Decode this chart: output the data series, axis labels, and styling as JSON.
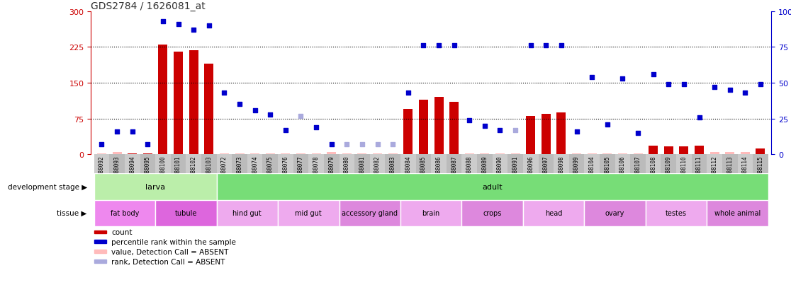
{
  "title": "GDS2784 / 1626081_at",
  "samples": [
    "GSM188092",
    "GSM188093",
    "GSM188094",
    "GSM188095",
    "GSM188100",
    "GSM188101",
    "GSM188102",
    "GSM188103",
    "GSM188072",
    "GSM188073",
    "GSM188074",
    "GSM188075",
    "GSM188076",
    "GSM188077",
    "GSM188078",
    "GSM188079",
    "GSM188080",
    "GSM188081",
    "GSM188082",
    "GSM188083",
    "GSM188084",
    "GSM188085",
    "GSM188086",
    "GSM188087",
    "GSM188088",
    "GSM188089",
    "GSM188090",
    "GSM188091",
    "GSM188096",
    "GSM188097",
    "GSM188098",
    "GSM188099",
    "GSM188104",
    "GSM188105",
    "GSM188106",
    "GSM188107",
    "GSM188108",
    "GSM188109",
    "GSM188110",
    "GSM188111",
    "GSM188112",
    "GSM188113",
    "GSM188114",
    "GSM188115"
  ],
  "count_values": [
    2,
    5,
    2,
    2,
    230,
    215,
    218,
    190,
    2,
    2,
    2,
    2,
    2,
    2,
    2,
    5,
    2,
    2,
    2,
    2,
    95,
    115,
    120,
    110,
    2,
    2,
    2,
    2,
    80,
    85,
    88,
    2,
    2,
    2,
    2,
    2,
    18,
    17,
    17,
    18,
    5,
    5,
    5,
    12
  ],
  "absent_count": [
    true,
    true,
    false,
    false,
    false,
    false,
    false,
    false,
    true,
    true,
    true,
    true,
    true,
    true,
    true,
    true,
    true,
    true,
    true,
    true,
    false,
    false,
    false,
    false,
    true,
    true,
    true,
    true,
    false,
    false,
    false,
    true,
    true,
    true,
    true,
    true,
    false,
    false,
    false,
    false,
    true,
    true,
    true,
    false
  ],
  "rank_pct": [
    7,
    16,
    16,
    7,
    93,
    91,
    87,
    90,
    43,
    35,
    31,
    28,
    17,
    27,
    19,
    7,
    7,
    7,
    7,
    7,
    43,
    76,
    76,
    76,
    24,
    20,
    17,
    17,
    76,
    76,
    76,
    16,
    54,
    21,
    53,
    15,
    56,
    49,
    49,
    26,
    47,
    45,
    43,
    49
  ],
  "absent_rank": [
    false,
    false,
    false,
    false,
    false,
    false,
    false,
    false,
    false,
    false,
    false,
    false,
    false,
    true,
    false,
    false,
    true,
    true,
    true,
    true,
    false,
    false,
    false,
    false,
    false,
    false,
    false,
    true,
    false,
    false,
    false,
    false,
    false,
    false,
    false,
    false,
    false,
    false,
    false,
    false,
    false,
    false,
    false,
    false
  ],
  "ylim_left": [
    0,
    300
  ],
  "ylim_right": [
    0,
    100
  ],
  "yticks_left": [
    0,
    75,
    150,
    225,
    300
  ],
  "yticks_right": [
    0,
    25,
    50,
    75,
    100
  ],
  "ytick_labels_right": [
    "0",
    "25",
    "50",
    "75",
    "100%"
  ],
  "dotted_lines_pct": [
    25,
    50,
    75
  ],
  "bar_color": "#cc0000",
  "bar_absent_color": "#ffbbbb",
  "rank_color": "#0000cc",
  "rank_absent_color": "#aaaadd",
  "bg_color": "#ffffff",
  "title_color": "#333333",
  "left_axis_color": "#cc0000",
  "right_axis_color": "#0000cc",
  "dev_stage_groups": [
    {
      "label": "larva",
      "start": 0,
      "end": 8,
      "color": "#bbeeaa"
    },
    {
      "label": "adult",
      "start": 8,
      "end": 44,
      "color": "#77dd77"
    }
  ],
  "tissue_groups": [
    {
      "label": "fat body",
      "start": 0,
      "end": 4,
      "color": "#ee88ee"
    },
    {
      "label": "tubule",
      "start": 4,
      "end": 8,
      "color": "#dd66dd"
    },
    {
      "label": "hind gut",
      "start": 8,
      "end": 12,
      "color": "#eeaaee"
    },
    {
      "label": "mid gut",
      "start": 12,
      "end": 16,
      "color": "#eeaaee"
    },
    {
      "label": "accessory gland",
      "start": 16,
      "end": 20,
      "color": "#dd88dd"
    },
    {
      "label": "brain",
      "start": 20,
      "end": 24,
      "color": "#eeaaee"
    },
    {
      "label": "crops",
      "start": 24,
      "end": 28,
      "color": "#dd88dd"
    },
    {
      "label": "head",
      "start": 28,
      "end": 32,
      "color": "#eeaaee"
    },
    {
      "label": "ovary",
      "start": 32,
      "end": 36,
      "color": "#dd88dd"
    },
    {
      "label": "testes",
      "start": 36,
      "end": 40,
      "color": "#eeaaee"
    },
    {
      "label": "whole animal",
      "start": 40,
      "end": 44,
      "color": "#dd88dd"
    }
  ],
  "legend_items": [
    {
      "label": "count",
      "color": "#cc0000"
    },
    {
      "label": "percentile rank within the sample",
      "color": "#0000cc"
    },
    {
      "label": "value, Detection Call = ABSENT",
      "color": "#ffbbbb"
    },
    {
      "label": "rank, Detection Call = ABSENT",
      "color": "#aaaadd"
    }
  ]
}
